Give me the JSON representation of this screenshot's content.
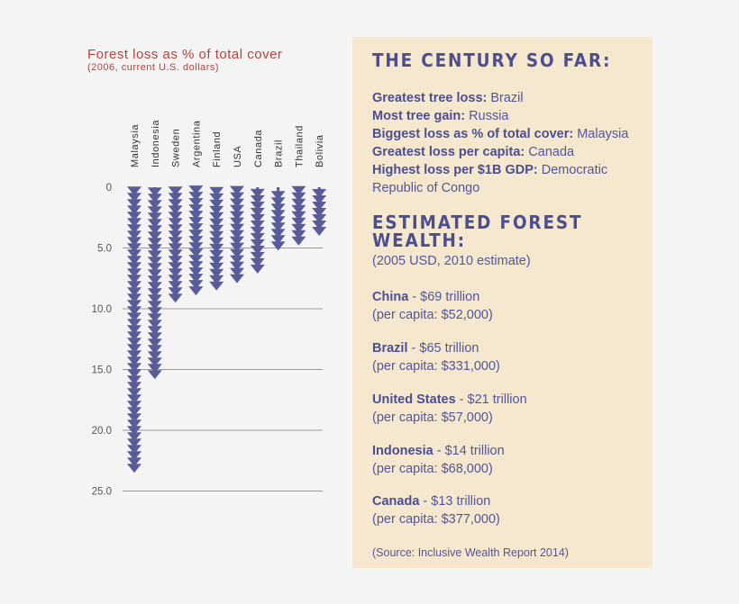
{
  "chart_data": {
    "type": "bar",
    "title": "Forest loss as % of total cover",
    "subtitle": "(2006, current U.S. dollars)",
    "categories": [
      "Malaysia",
      "Indonesia",
      "Sweden",
      "Argentina",
      "Finland",
      "USA",
      "Canada",
      "Brazil",
      "Thailand",
      "Bolivia"
    ],
    "values": [
      23.5,
      15.8,
      9.5,
      8.9,
      8.5,
      7.9,
      7.1,
      5.2,
      4.8,
      4.0
    ],
    "ylim": [
      0,
      25
    ],
    "yticks": [
      "0",
      "5.0",
      "10.0",
      "15.0",
      "20.0",
      "25.0"
    ],
    "orientation": "downward",
    "grid": true,
    "bar_color": "#5a5c99"
  },
  "panel": {
    "heading1": "THE CENTURY SO FAR:",
    "facts": [
      {
        "label": "Greatest tree loss:",
        "value": " Brazil"
      },
      {
        "label": "Most tree gain:",
        "value": " Russia"
      },
      {
        "label": "Biggest loss as % of total cover:",
        "value": " Malaysia"
      },
      {
        "label": "Greatest loss per capita:",
        "value": " Canada"
      },
      {
        "label": "Highest loss per $1B GDP:",
        "value": " Democratic"
      }
    ],
    "fact_continuation": "Republic of Congo",
    "heading2_line1": "ESTIMATED FOREST",
    "heading2_line2": "WEALTH:",
    "estimate_note": "(2005 USD, 2010 estimate)",
    "wealth": [
      {
        "country": "China",
        "value": " - $69 trillion",
        "per_capita": "(per capita: $52,000)"
      },
      {
        "country": "Brazil",
        "value": " - $65 trillion",
        "per_capita": "(per capita: $331,000)"
      },
      {
        "country": "United States",
        "value": " - $21 trillion",
        "per_capita": "(per capita: $57,000)"
      },
      {
        "country": "Indonesia",
        "value": " - $14 trillion",
        "per_capita": "(per capita: $68,000)"
      },
      {
        "country": "Canada",
        "value": " - $13 trillion",
        "per_capita": "(per capita: $377,000)"
      }
    ],
    "source": "(Source: Inclusive Wealth Report 2014)"
  }
}
